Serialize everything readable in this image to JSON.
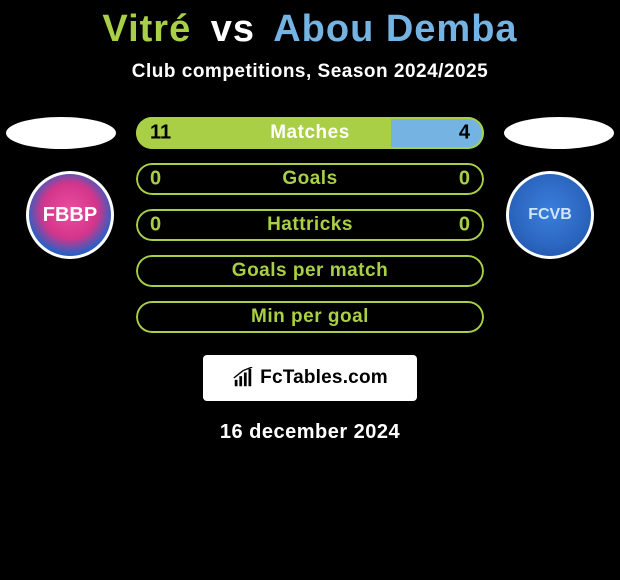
{
  "accent1": "#a8cf45",
  "accent2": "#75b4e2",
  "text_on_fill": "#000000",
  "text_on_bg": "#ffffff",
  "title": {
    "player1": "Vitré",
    "vs": "vs",
    "player2": "Abou Demba",
    "player1_color": "#a8cf45",
    "player2_color": "#75b4e2"
  },
  "subtitle": "Club competitions, Season 2024/2025",
  "date": "16 december 2024",
  "watermark": "FcTables.com",
  "clubs": {
    "left_label": "FBBP",
    "right_label": "FCVB"
  },
  "bars": [
    {
      "label": "Matches",
      "left_value": "11",
      "right_value": "4",
      "left_pct": 73.3,
      "right_pct": 26.7,
      "show_values": true,
      "label_color": "#ffffff",
      "outline_color": "#a8cf45"
    },
    {
      "label": "Goals",
      "left_value": "0",
      "right_value": "0",
      "left_pct": 0,
      "right_pct": 0,
      "show_values": true,
      "label_color": "#a8cf45",
      "outline_color": "#a8cf45"
    },
    {
      "label": "Hattricks",
      "left_value": "0",
      "right_value": "0",
      "left_pct": 0,
      "right_pct": 0,
      "show_values": true,
      "label_color": "#a8cf45",
      "outline_color": "#a8cf45"
    },
    {
      "label": "Goals per match",
      "left_value": "",
      "right_value": "",
      "left_pct": 0,
      "right_pct": 0,
      "show_values": false,
      "label_color": "#a8cf45",
      "outline_color": "#a8cf45"
    },
    {
      "label": "Min per goal",
      "left_value": "",
      "right_value": "",
      "left_pct": 0,
      "right_pct": 0,
      "show_values": false,
      "label_color": "#a8cf45",
      "outline_color": "#a8cf45"
    }
  ]
}
